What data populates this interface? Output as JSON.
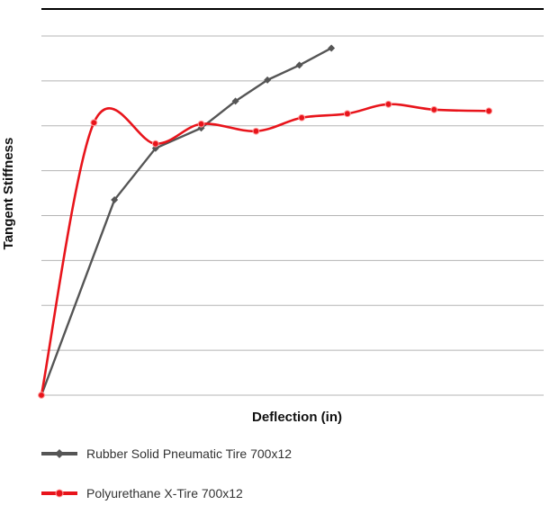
{
  "chart_data": {
    "type": "line",
    "title": "",
    "xlabel": "Deflection (in)",
    "ylabel": "Tangent Stiffness",
    "xlim": [
      0,
      11
    ],
    "ylim": [
      0,
      8
    ],
    "grid": true,
    "legend_position": "bottom",
    "series": [
      {
        "name": "Rubber Solid Pneumatic Tire 700x12",
        "color": "#555555",
        "marker": "diamond",
        "smooth": false,
        "points": [
          [
            0,
            0
          ],
          [
            1.6,
            4.35
          ],
          [
            2.5,
            5.5
          ],
          [
            3.5,
            5.95
          ],
          [
            4.25,
            6.55
          ],
          [
            4.95,
            7.02
          ],
          [
            5.65,
            7.35
          ],
          [
            6.35,
            7.73
          ]
        ]
      },
      {
        "name": "Polyurethane X-Tire 700x12",
        "color": "#e8141b",
        "marker": "circle",
        "smooth": true,
        "points": [
          [
            0,
            0
          ],
          [
            1.15,
            6.07
          ],
          [
            2.5,
            5.6
          ],
          [
            3.5,
            6.04
          ],
          [
            4.7,
            5.88
          ],
          [
            5.7,
            6.18
          ],
          [
            6.7,
            6.27
          ],
          [
            7.6,
            6.48
          ],
          [
            8.6,
            6.36
          ],
          [
            9.8,
            6.33
          ]
        ]
      }
    ]
  }
}
